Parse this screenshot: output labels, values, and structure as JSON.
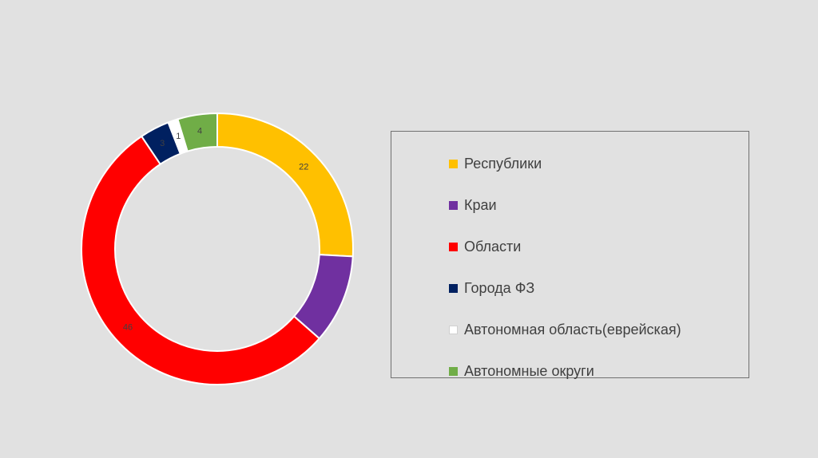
{
  "chart_data": {
    "type": "pie",
    "subtype": "donut",
    "title": "",
    "categories": [
      "Республики",
      "Краи",
      "Области",
      "Города ФЗ",
      "Автономная область(еврейская)",
      "Автономные округи"
    ],
    "values": [
      22,
      9,
      46,
      3,
      1,
      4
    ],
    "data_labels": [
      "22",
      "",
      "46",
      "3",
      "1",
      "4"
    ],
    "colors": [
      "#FFC000",
      "#7030A0",
      "#FF0000",
      "#002060",
      "#FFFFFF",
      "#70AD47"
    ],
    "legend_position": "right",
    "legend_border": true
  }
}
